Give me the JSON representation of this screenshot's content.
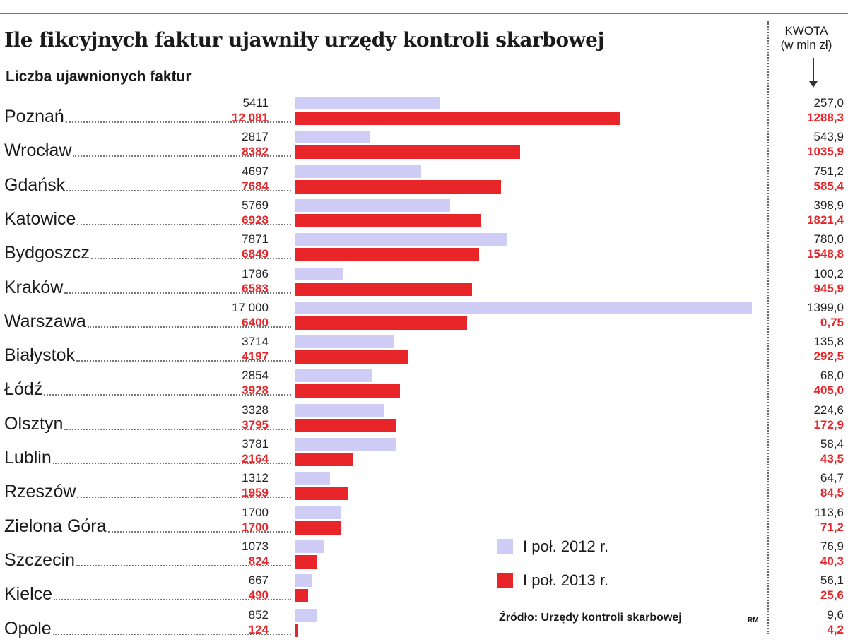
{
  "chart_data": {
    "type": "bar",
    "orientation": "horizontal",
    "title": "Ile fikcyjnych faktur ujawniły urzędy kontroli skarbowej",
    "subtitle": "Liczba ujawnionych faktur",
    "categories": [
      "Poznań",
      "Wrocław",
      "Gdańsk",
      "Katowice",
      "Bydgoszcz",
      "Kraków",
      "Warszawa",
      "Białystok",
      "Łódź",
      "Olsztyn",
      "Lublin",
      "Rzeszów",
      "Zielona Góra",
      "Szczecin",
      "Kielce",
      "Opole"
    ],
    "series": [
      {
        "name": "I poł.  2012 r.",
        "color": "#cfccf6",
        "values": [
          5411,
          2817,
          4697,
          5769,
          7871,
          1786,
          17000,
          3714,
          2854,
          3328,
          3781,
          1312,
          1700,
          1073,
          667,
          852
        ]
      },
      {
        "name": "I poł.  2013 r.",
        "color": "#e8262a",
        "values": [
          12081,
          8382,
          7684,
          6928,
          6849,
          6583,
          6400,
          4197,
          3928,
          3795,
          2164,
          1959,
          1700,
          824,
          490,
          124
        ]
      }
    ],
    "value_labels": {
      "2012": [
        "5411",
        "2817",
        "4697",
        "5769",
        "7871",
        "1786",
        "17 000",
        "3714",
        "2854",
        "3328",
        "3781",
        "1312",
        "1700",
        "1073",
        "667",
        "852"
      ],
      "2013": [
        "12 081",
        "8382",
        "7684",
        "6928",
        "6849",
        "6583",
        "6400",
        "4197",
        "3928",
        "3795",
        "2164",
        "1959",
        "1700",
        "824",
        "490",
        "124"
      ]
    },
    "xlim": [
      0,
      17000
    ],
    "grid": false,
    "legend_position": "bottom-right",
    "kwota_column": {
      "header": "KWOTA",
      "unit": "(w mln zł)",
      "values_2012": [
        "257,0",
        "543,9",
        "751,2",
        "398,9",
        "780,0",
        "100,2",
        "1399,0",
        "135,8",
        "68,0",
        "224,6",
        "58,4",
        "64,7",
        "113,6",
        "76,9",
        "56,1",
        "9,6"
      ],
      "values_2013": [
        "1288,3",
        "1035,9",
        "585,4",
        "1821,4",
        "1548,8",
        "945,9",
        "0,75",
        "292,5",
        "405,0",
        "172,9",
        "43,5",
        "84,5",
        "71,2",
        "40,3",
        "25,6",
        "4,2"
      ]
    }
  },
  "source": "Źródło: Urzędy kontroli skarbowej",
  "signature": "RM"
}
